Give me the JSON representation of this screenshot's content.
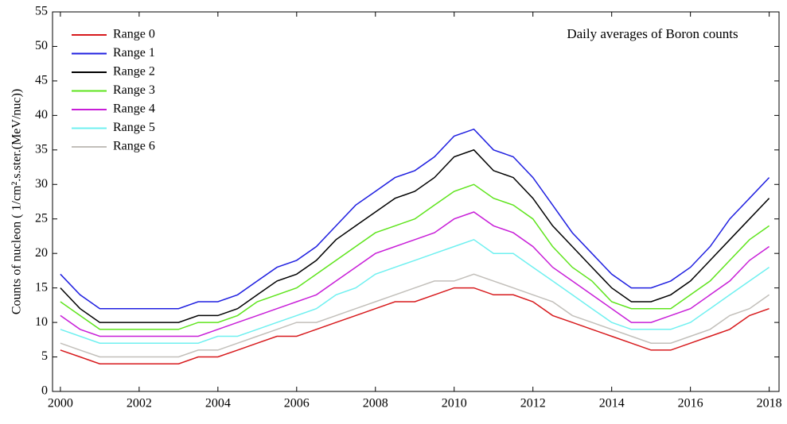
{
  "chart_data": {
    "type": "line",
    "annotation": "Daily averages of Boron counts",
    "y_label": "Counts of nucleon ( 1/cm².s.ster.(MeV/nuc))",
    "x": [
      2000,
      2000.5,
      2001,
      2001.5,
      2002,
      2002.5,
      2003,
      2003.5,
      2004,
      2004.5,
      2005,
      2005.5,
      2006,
      2006.5,
      2007,
      2007.5,
      2008,
      2008.5,
      2009,
      2009.5,
      2010,
      2010.5,
      2011,
      2011.5,
      2012,
      2012.5,
      2013,
      2013.5,
      2014,
      2014.5,
      2015,
      2015.5,
      2016,
      2016.5,
      2017,
      2017.5,
      2018
    ],
    "series": [
      {
        "name": "Range 0",
        "color": "#d7191c",
        "values": [
          6,
          5,
          4,
          4,
          4,
          4,
          4,
          5,
          5,
          6,
          7,
          8,
          8,
          9,
          10,
          11,
          12,
          13,
          13,
          14,
          15,
          15,
          14,
          14,
          13,
          11,
          10,
          9,
          8,
          7,
          6,
          6,
          7,
          8,
          9,
          11,
          12
        ]
      },
      {
        "name": "Range 1",
        "color": "#1f1fe0",
        "values": [
          17,
          14,
          12,
          12,
          12,
          12,
          12,
          13,
          13,
          14,
          16,
          18,
          19,
          21,
          24,
          27,
          29,
          31,
          32,
          34,
          37,
          38,
          35,
          34,
          31,
          27,
          23,
          20,
          17,
          15,
          15,
          16,
          18,
          21,
          25,
          28,
          31
        ]
      },
      {
        "name": "Range 2",
        "color": "#000000",
        "values": [
          15,
          12,
          10,
          10,
          10,
          10,
          10,
          11,
          11,
          12,
          14,
          16,
          17,
          19,
          22,
          24,
          26,
          28,
          29,
          31,
          34,
          35,
          32,
          31,
          28,
          24,
          21,
          18,
          15,
          13,
          13,
          14,
          16,
          19,
          22,
          25,
          28
        ]
      },
      {
        "name": "Range 3",
        "color": "#5ee41c",
        "values": [
          13,
          11,
          9,
          9,
          9,
          9,
          9,
          10,
          10,
          11,
          13,
          14,
          15,
          17,
          19,
          21,
          23,
          24,
          25,
          27,
          29,
          30,
          28,
          27,
          25,
          21,
          18,
          16,
          13,
          12,
          12,
          12,
          14,
          16,
          19,
          22,
          24
        ]
      },
      {
        "name": "Range 4",
        "color": "#c81ed8",
        "values": [
          11,
          9,
          8,
          8,
          8,
          8,
          8,
          8,
          9,
          10,
          11,
          12,
          13,
          14,
          16,
          18,
          20,
          21,
          22,
          23,
          25,
          26,
          24,
          23,
          21,
          18,
          16,
          14,
          12,
          10,
          10,
          11,
          12,
          14,
          16,
          19,
          21
        ]
      },
      {
        "name": "Range 5",
        "color": "#6ff0f0",
        "values": [
          9,
          8,
          7,
          7,
          7,
          7,
          7,
          7,
          8,
          8,
          9,
          10,
          11,
          12,
          14,
          15,
          17,
          18,
          19,
          20,
          21,
          22,
          20,
          20,
          18,
          16,
          14,
          12,
          10,
          9,
          9,
          9,
          10,
          12,
          14,
          16,
          18
        ]
      },
      {
        "name": "Range 6",
        "color": "#c2bfba",
        "values": [
          7,
          6,
          5,
          5,
          5,
          5,
          5,
          6,
          6,
          7,
          8,
          9,
          10,
          10,
          11,
          12,
          13,
          14,
          15,
          16,
          16,
          17,
          16,
          15,
          14,
          13,
          11,
          10,
          9,
          8,
          7,
          7,
          8,
          9,
          11,
          12,
          14
        ]
      }
    ],
    "xlim": [
      1999.8,
      2018.25
    ],
    "xticks": [
      2000,
      2002,
      2004,
      2006,
      2008,
      2010,
      2012,
      2014,
      2016,
      2018
    ],
    "ylim": [
      0,
      55
    ],
    "yticks": [
      0,
      5,
      10,
      15,
      20,
      25,
      30,
      35,
      40,
      45,
      50,
      55
    ],
    "legend": "upper left"
  }
}
